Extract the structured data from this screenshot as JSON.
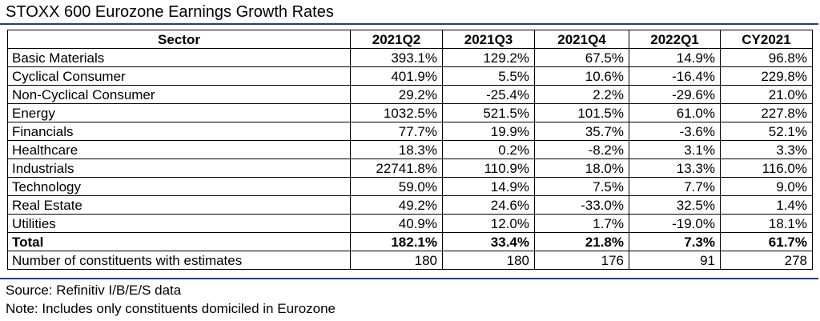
{
  "title": "STOXX 600 Eurozone Earnings Growth Rates",
  "colors": {
    "rule": "#1f3a93"
  },
  "table": {
    "headers": [
      "Sector",
      "2021Q2",
      "2021Q3",
      "2021Q4",
      "2022Q1",
      "CY2021"
    ],
    "rows": [
      {
        "sector": "Basic Materials",
        "values": [
          "393.1%",
          "129.2%",
          "67.5%",
          "14.9%",
          "96.8%"
        ]
      },
      {
        "sector": "Cyclical Consumer",
        "values": [
          "401.9%",
          "5.5%",
          "10.6%",
          "-16.4%",
          "229.8%"
        ]
      },
      {
        "sector": "Non-Cyclical Consumer",
        "values": [
          "29.2%",
          "-25.4%",
          "2.2%",
          "-29.6%",
          "21.0%"
        ]
      },
      {
        "sector": "Energy",
        "values": [
          "1032.5%",
          "521.5%",
          "101.5%",
          "61.0%",
          "227.8%"
        ]
      },
      {
        "sector": "Financials",
        "values": [
          "77.7%",
          "19.9%",
          "35.7%",
          "-3.6%",
          "52.1%"
        ]
      },
      {
        "sector": "Healthcare",
        "values": [
          "18.3%",
          "0.2%",
          "-8.2%",
          "3.1%",
          "3.3%"
        ]
      },
      {
        "sector": "Industrials",
        "values": [
          "22741.8%",
          "110.9%",
          "18.0%",
          "13.3%",
          "116.0%"
        ]
      },
      {
        "sector": "Technology",
        "values": [
          "59.0%",
          "14.9%",
          "7.5%",
          "7.7%",
          "9.0%"
        ]
      },
      {
        "sector": "Real Estate",
        "values": [
          "49.2%",
          "24.6%",
          "-33.0%",
          "32.5%",
          "1.4%"
        ]
      },
      {
        "sector": "Utilities",
        "values": [
          "40.9%",
          "12.0%",
          "1.7%",
          "-19.0%",
          "18.1%"
        ]
      }
    ],
    "total": {
      "sector": "Total",
      "values": [
        "182.1%",
        "33.4%",
        "21.8%",
        "7.3%",
        "61.7%"
      ]
    },
    "constituents": {
      "sector": "Number of constituents with estimates",
      "values": [
        "180",
        "180",
        "176",
        "91",
        "278"
      ]
    }
  },
  "footnotes": {
    "source": "Source: Refinitiv I/B/E/S data",
    "note": "Note: Includes only constituents domiciled in Eurozone"
  }
}
